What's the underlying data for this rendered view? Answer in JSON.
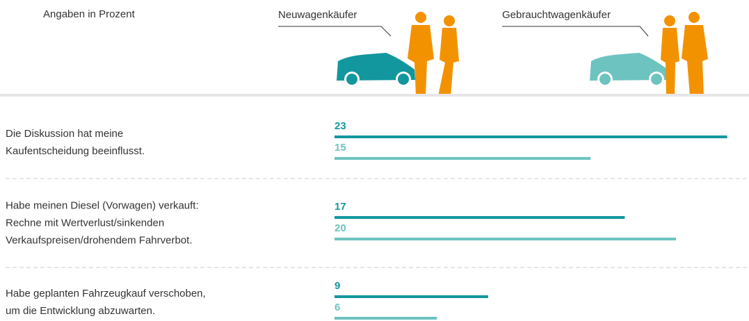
{
  "chart_data": {
    "type": "bar",
    "subtitle": "Angaben in Prozent",
    "categories": [
      "Die Diskussion hat meine\nKaufentscheidung beeinflusst.",
      "Habe meinen Diesel (Vorwagen) verkauft:\nRechne mit Wertverlust/sinkenden\nVerkaufspreisen/drohendem Fahrverbot.",
      "Habe geplanten Fahrzeugkauf verschoben,\num die Entwicklung abzuwarten."
    ],
    "series": [
      {
        "name": "Neuwagenkäufer",
        "color": "#13979e",
        "values": [
          23,
          17,
          9
        ]
      },
      {
        "name": "Gebrauchtwagenkäufer",
        "color": "#6dc3bf",
        "values": [
          15,
          20,
          6
        ]
      }
    ]
  }
}
